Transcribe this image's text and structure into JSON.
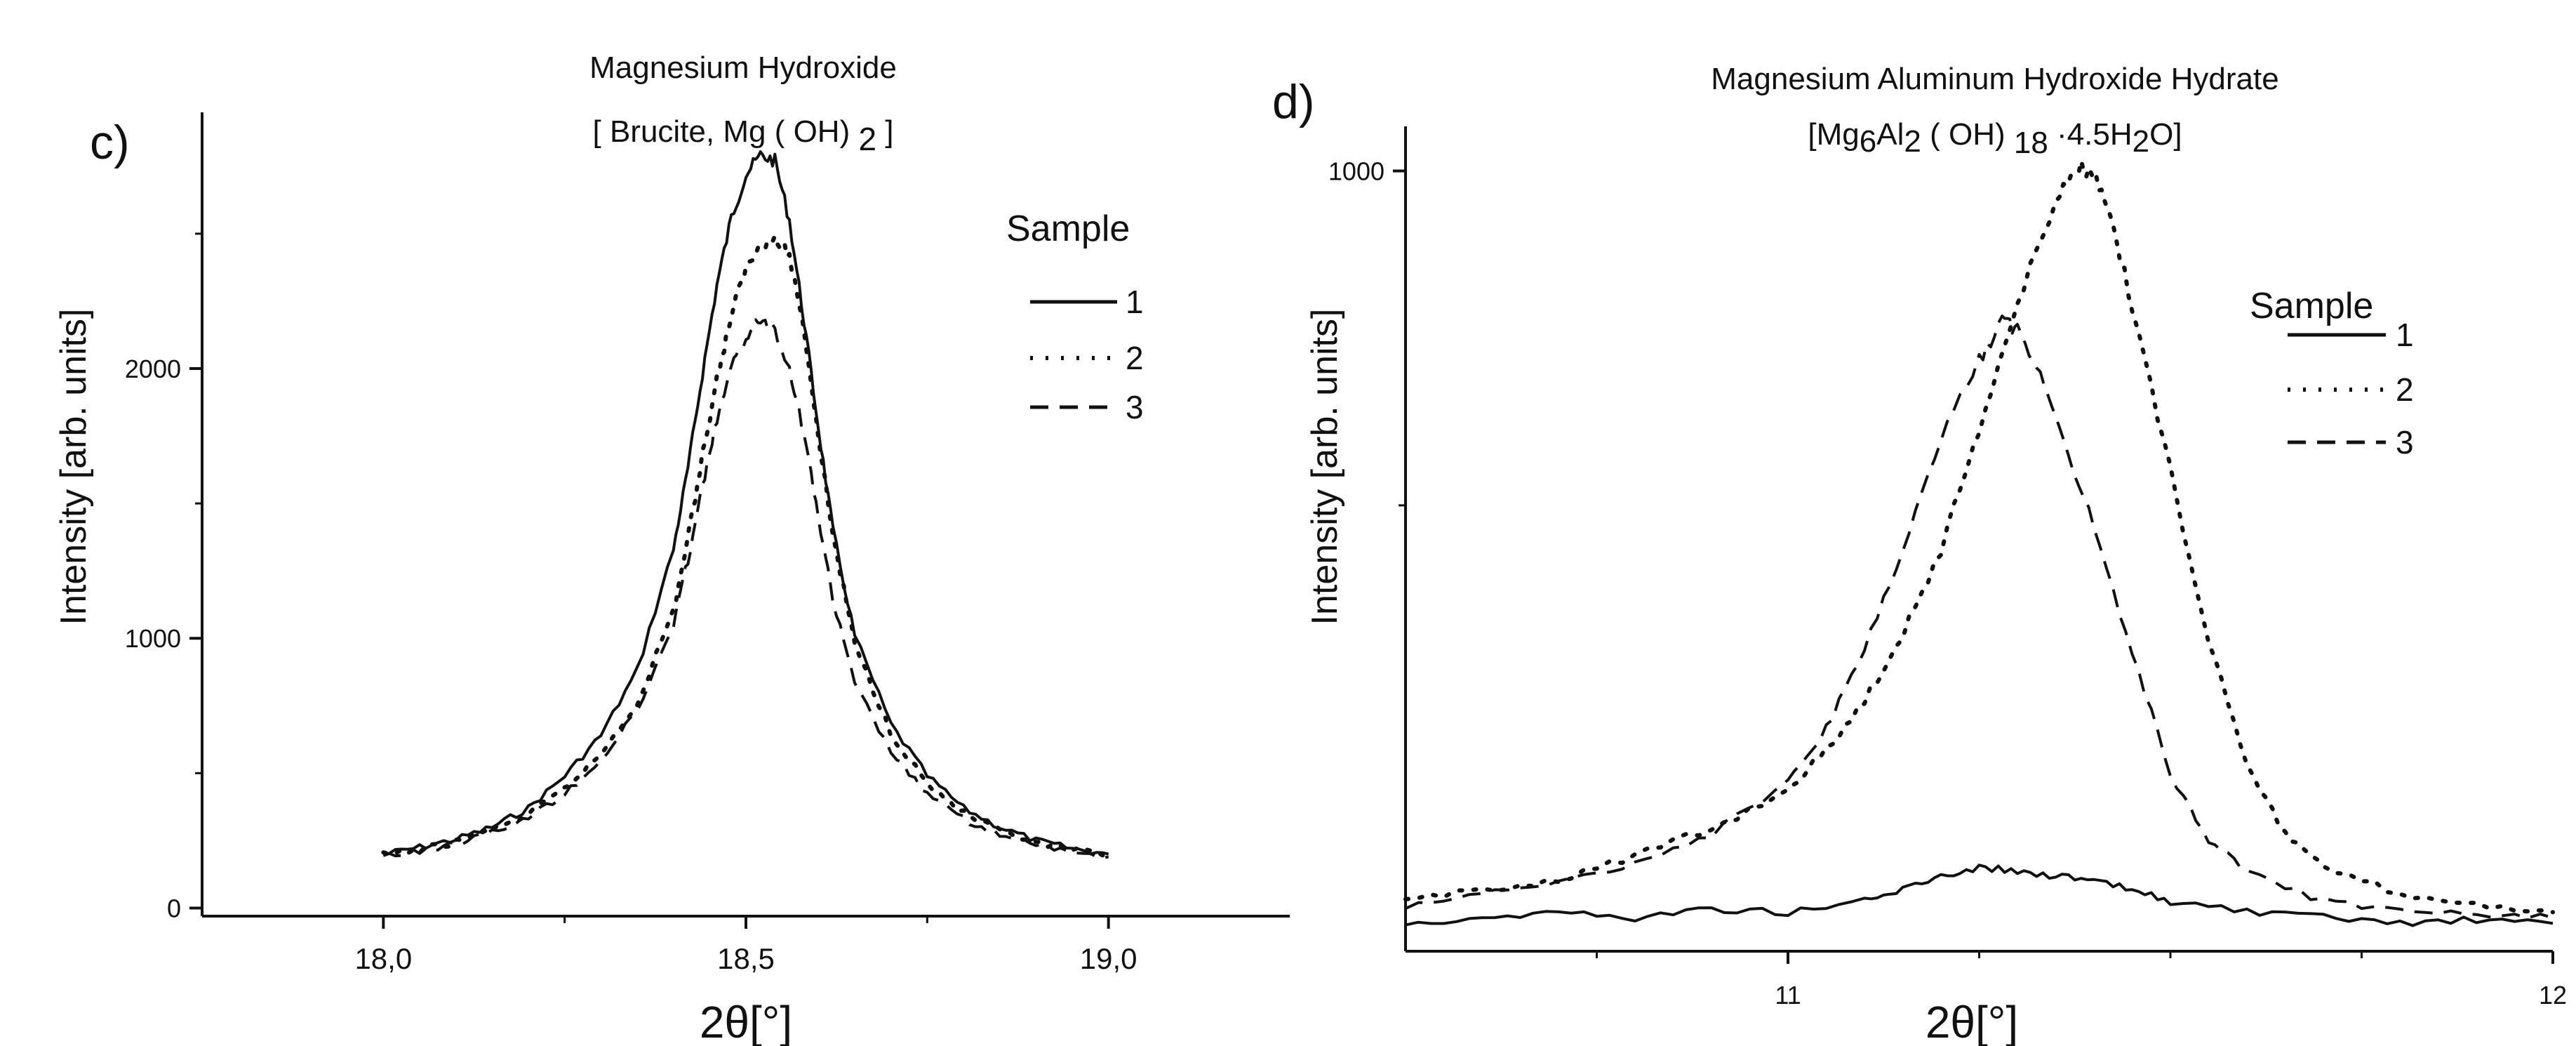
{
  "chart_data": [
    {
      "type": "line",
      "panel_label": "c)",
      "title_line1": "Magnesium Hydroxide",
      "title_line2_parts": [
        "[ Brucite, Mg ( OH) ",
        "2",
        " ]"
      ],
      "xlabel": "2θ[°]",
      "ylabel": "Intensity [arb. units]",
      "xlim": [
        17.75,
        19.25
      ],
      "ylim": [
        -30,
        2950
      ],
      "xticks": [
        18.0,
        18.5,
        19.0
      ],
      "xtick_labels": [
        "18,0",
        "18,5",
        "19,0"
      ],
      "yticks": [
        0,
        1000,
        2000
      ],
      "ytick_labels": [
        "0",
        "1000",
        "2000"
      ],
      "legend_title": "Sample",
      "legend_position": "top-right",
      "series": [
        {
          "name": "1",
          "style": "solid",
          "x": [
            18.0,
            18.05,
            18.1,
            18.15,
            18.2,
            18.25,
            18.3,
            18.35,
            18.4,
            18.42,
            18.44,
            18.46,
            18.48,
            18.5,
            18.52,
            18.54,
            18.56,
            18.58,
            18.6,
            18.62,
            18.65,
            18.7,
            18.75,
            18.8,
            18.85,
            18.9,
            18.95,
            19.0
          ],
          "y": [
            200,
            225,
            255,
            300,
            370,
            490,
            640,
            880,
            1330,
            1630,
            1980,
            2310,
            2560,
            2720,
            2790,
            2770,
            2550,
            2180,
            1780,
            1400,
            1010,
            680,
            490,
            370,
            300,
            250,
            220,
            200
          ]
        },
        {
          "name": "2",
          "style": "dotted",
          "x": [
            18.0,
            18.05,
            18.1,
            18.15,
            18.2,
            18.25,
            18.3,
            18.35,
            18.4,
            18.42,
            18.44,
            18.46,
            18.48,
            18.5,
            18.52,
            18.54,
            18.56,
            18.58,
            18.6,
            18.62,
            18.65,
            18.7,
            18.75,
            18.8,
            18.85,
            18.9,
            18.95,
            19.0
          ],
          "y": [
            195,
            215,
            245,
            290,
            345,
            440,
            570,
            760,
            1100,
            1370,
            1680,
            1960,
            2200,
            2370,
            2460,
            2480,
            2420,
            2150,
            1750,
            1380,
            980,
            650,
            460,
            350,
            285,
            240,
            215,
            195
          ]
        },
        {
          "name": "3",
          "style": "dashed",
          "x": [
            18.0,
            18.05,
            18.1,
            18.15,
            18.2,
            18.25,
            18.3,
            18.35,
            18.4,
            18.42,
            18.44,
            18.46,
            18.48,
            18.5,
            18.52,
            18.54,
            18.56,
            18.58,
            18.6,
            18.62,
            18.65,
            18.7,
            18.75,
            18.8,
            18.85,
            18.9,
            18.95,
            19.0
          ],
          "y": [
            195,
            210,
            240,
            280,
            335,
            425,
            550,
            730,
            1050,
            1290,
            1560,
            1810,
            2000,
            2120,
            2180,
            2150,
            2000,
            1760,
            1450,
            1140,
            830,
            580,
            420,
            330,
            270,
            230,
            210,
            190
          ]
        }
      ]
    },
    {
      "type": "line",
      "panel_label": "d)",
      "title_line1": "Magnesium Aluminum Hydroxide Hydrate",
      "title_line2_parts": [
        "[Mg",
        "6",
        "Al",
        "2",
        "  (  OH)  ",
        "18",
        " ·4.5H",
        "2",
        "O]"
      ],
      "xlabel": "2θ[°]",
      "ylabel": "Intensity [arb. units]",
      "xlim": [
        10.5,
        12.0
      ],
      "ylim": [
        300,
        1040
      ],
      "xticks": [
        11,
        12
      ],
      "xtick_labels": [
        "11",
        "12"
      ],
      "yticks": [
        1000
      ],
      "ytick_labels": [
        "1000"
      ],
      "legend_title": "Sample",
      "legend_position": "top-right",
      "series": [
        {
          "name": "1",
          "style": "solid",
          "x": [
            10.5,
            10.6,
            10.7,
            10.8,
            10.9,
            11.0,
            11.1,
            11.15,
            11.2,
            11.25,
            11.3,
            11.35,
            11.4,
            11.45,
            11.5,
            11.6,
            11.7,
            11.8,
            11.9,
            12.0
          ],
          "y": [
            325,
            330,
            335,
            330,
            338,
            335,
            345,
            355,
            368,
            375,
            372,
            368,
            362,
            355,
            345,
            335,
            330,
            325,
            328,
            325
          ]
        },
        {
          "name": "2",
          "style": "dotted",
          "x": [
            10.5,
            10.6,
            10.7,
            10.8,
            10.9,
            11.0,
            11.05,
            11.1,
            11.15,
            11.2,
            11.25,
            11.3,
            11.35,
            11.38,
            11.4,
            11.42,
            11.45,
            11.5,
            11.55,
            11.6,
            11.65,
            11.7,
            11.8,
            11.9,
            12.0
          ],
          "y": [
            345,
            355,
            365,
            385,
            410,
            445,
            480,
            525,
            585,
            660,
            770,
            880,
            975,
            1005,
            995,
            960,
            880,
            730,
            580,
            470,
            405,
            375,
            352,
            342,
            335
          ]
        },
        {
          "name": "3",
          "style": "dashed",
          "x": [
            10.5,
            10.6,
            10.7,
            10.8,
            10.9,
            11.0,
            11.05,
            11.1,
            11.15,
            11.2,
            11.25,
            11.28,
            11.3,
            11.33,
            11.36,
            11.4,
            11.45,
            11.5,
            11.55,
            11.6,
            11.7,
            11.8,
            11.9,
            12.0
          ],
          "y": [
            340,
            350,
            362,
            380,
            405,
            450,
            500,
            570,
            660,
            760,
            830,
            865,
            858,
            820,
            760,
            680,
            570,
            460,
            400,
            370,
            345,
            335,
            332,
            330
          ]
        }
      ]
    }
  ]
}
